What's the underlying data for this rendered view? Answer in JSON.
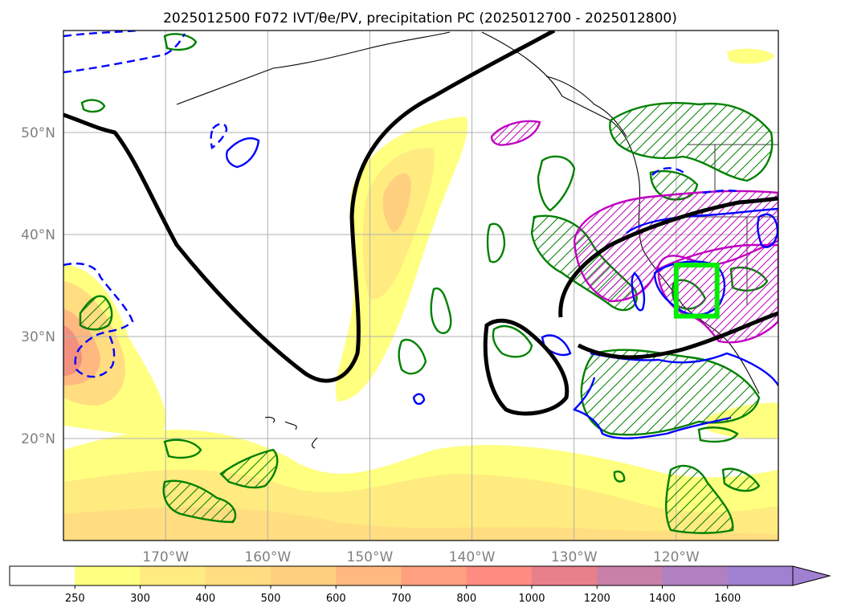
{
  "title": "2025012500 F072 IVT/θe/PV, precipitation PC (2025012700 - 2025012800)",
  "map": {
    "lat_labels": [
      "50°N",
      "40°N",
      "30°N",
      "20°N"
    ],
    "lon_labels": [
      "170°W",
      "160°W",
      "150°W",
      "140°W",
      "130°W",
      "120°W"
    ],
    "lat_values": [
      50,
      40,
      30,
      20
    ],
    "lon_values": [
      -170,
      -160,
      -150,
      -140,
      -130,
      -120
    ],
    "extent": {
      "lon": [
        -180,
        -110
      ],
      "lat": [
        10,
        60
      ]
    },
    "highlight_box": {
      "lon": [
        -120,
        -116
      ],
      "lat": [
        32,
        37
      ],
      "color": "#00ee00"
    },
    "contour_colors": {
      "theta_e": "#000000",
      "pv_positive": "#0000ff",
      "pv_negative_dashed": "#0000ff",
      "precip_pc_green": "#008000",
      "precip_pc_magenta": "#c000c0"
    }
  },
  "colorbar": {
    "tick_labels": [
      "250",
      "300",
      "400",
      "500",
      "600",
      "700",
      "800",
      "1000",
      "1200",
      "1400",
      "1600"
    ],
    "levels": [
      250,
      300,
      400,
      500,
      600,
      700,
      800,
      1000,
      1200,
      1400,
      1600
    ],
    "colors": [
      "#ffffff",
      "#ffff80",
      "#ffeb80",
      "#ffdd80",
      "#ffcf80",
      "#ffb880",
      "#ffa080",
      "#ff8c80",
      "#e8808c",
      "#c880a8",
      "#b080c0",
      "#a080d0"
    ],
    "extend": "max"
  }
}
